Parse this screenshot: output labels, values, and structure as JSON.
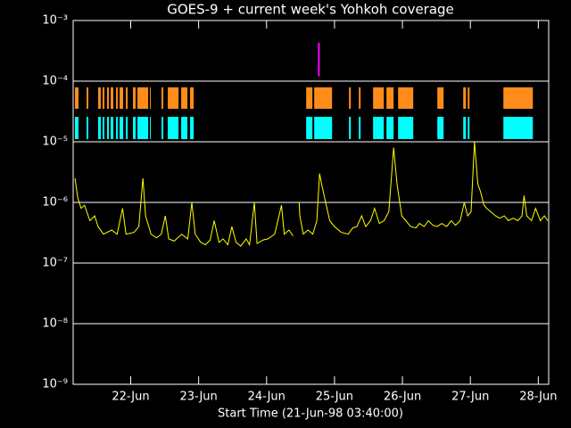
{
  "chart_data": {
    "type": "line",
    "title": "GOES-9 + current week's Yohkoh coverage",
    "x_label": "Start Time (21-Jun-98 03:40:00)",
    "log_y": true,
    "grid": true,
    "xlim": [
      21.153,
      28.153
    ],
    "xticks": [
      {
        "value": 22,
        "label": "22-Jun"
      },
      {
        "value": 23,
        "label": "23-Jun"
      },
      {
        "value": 24,
        "label": "24-Jun"
      },
      {
        "value": 25,
        "label": "25-Jun"
      },
      {
        "value": 26,
        "label": "26-Jun"
      },
      {
        "value": 27,
        "label": "27-Jun"
      },
      {
        "value": 28,
        "label": "28-Jun"
      }
    ],
    "ylim": [
      1e-09,
      0.001
    ],
    "yticks": [
      {
        "value": 1e-09,
        "label": "10⁻⁹"
      },
      {
        "value": 1e-08,
        "label": "10⁻⁸"
      },
      {
        "value": 1e-07,
        "label": "10⁻⁷"
      },
      {
        "value": 1e-06,
        "label": "10⁻⁶"
      },
      {
        "value": 1e-05,
        "label": "10⁻⁵"
      },
      {
        "value": 0.0001,
        "label": "10⁻⁴"
      },
      {
        "value": 0.001,
        "label": "10⁻³"
      }
    ],
    "series": [
      {
        "color": "#ffff00",
        "x": [
          21.18,
          21.22,
          21.27,
          21.32,
          21.4,
          21.47,
          21.52,
          21.6,
          21.72,
          21.8,
          21.88,
          21.93,
          22.05,
          22.12,
          22.18,
          22.22,
          22.3,
          22.38,
          22.45,
          22.51,
          22.56,
          22.64,
          22.75,
          22.84,
          22.9,
          22.95,
          23.03,
          23.1,
          23.17,
          23.23,
          23.3,
          23.36,
          23.43,
          23.49,
          23.55,
          23.62,
          23.7,
          23.75,
          23.82,
          23.86,
          23.95,
          24.02,
          24.12,
          24.22,
          24.26,
          24.33,
          24.39,
          24.43,
          24.48,
          24.49,
          24.54,
          24.61,
          24.68,
          24.74,
          24.78,
          24.81,
          24.87,
          24.93,
          25.0,
          25.1,
          25.2,
          25.27,
          25.33,
          25.4,
          25.46,
          25.53,
          25.59,
          25.66,
          25.73,
          25.8,
          25.87,
          25.92,
          25.99,
          26.05,
          26.12,
          26.2,
          26.25,
          26.32,
          26.38,
          26.45,
          26.51,
          26.58,
          26.65,
          26.72,
          26.78,
          26.85,
          26.91,
          26.96,
          27.01,
          27.06,
          27.11,
          27.15,
          27.2,
          27.24,
          27.3,
          27.37,
          27.43,
          27.5,
          27.56,
          27.63,
          27.7,
          27.76,
          27.79,
          27.83,
          27.9,
          27.96,
          28.03,
          28.09,
          28.14
        ],
        "values": [
          2.5e-06,
          1.2e-06,
          8e-07,
          9e-07,
          5e-07,
          6e-07,
          4e-07,
          3e-07,
          3.5e-07,
          3e-07,
          8e-07,
          3e-07,
          3.2e-07,
          4e-07,
          2.5e-06,
          6e-07,
          3e-07,
          2.6e-07,
          3e-07,
          6e-07,
          2.5e-07,
          2.3e-07,
          3e-07,
          2.5e-07,
          1e-06,
          3e-07,
          2.2e-07,
          2e-07,
          2.4e-07,
          5e-07,
          2.2e-07,
          2.5e-07,
          2e-07,
          4e-07,
          2.2e-07,
          1.9e-07,
          2.5e-07,
          2e-07,
          1e-06,
          2.1e-07,
          2.4e-07,
          2.5e-07,
          3e-07,
          9e-07,
          3e-07,
          3.5e-07,
          2.8e-07,
          null,
          1e-06,
          6e-07,
          3e-07,
          3.5e-07,
          3e-07,
          5e-07,
          3e-06,
          2e-06,
          1e-06,
          5e-07,
          4e-07,
          3.2e-07,
          3e-07,
          3.8e-07,
          4e-07,
          6e-07,
          4e-07,
          5e-07,
          8e-07,
          4.5e-07,
          5e-07,
          7e-07,
          8e-06,
          2e-06,
          6e-07,
          5e-07,
          4e-07,
          3.8e-07,
          4.5e-07,
          4e-07,
          5e-07,
          4.2e-07,
          4e-07,
          4.5e-07,
          4e-07,
          5e-07,
          4.2e-07,
          5e-07,
          1e-06,
          6e-07,
          7e-07,
          1e-05,
          2e-06,
          1.5e-06,
          9e-07,
          8e-07,
          7e-07,
          6e-07,
          5.5e-07,
          6e-07,
          5e-07,
          5.5e-07,
          5e-07,
          6e-07,
          1.3e-06,
          6e-07,
          5e-07,
          8e-07,
          5e-07,
          6e-07,
          5e-07
        ]
      }
    ],
    "coverage": {
      "colors": [
        "#ff8c1a",
        "#00ffff"
      ],
      "intervals": [
        [
          21.179,
          21.232
        ],
        [
          21.35,
          21.376
        ],
        [
          21.521,
          21.56
        ],
        [
          21.587,
          21.613
        ],
        [
          21.652,
          21.679
        ],
        [
          21.705,
          21.744
        ],
        [
          21.784,
          21.81
        ],
        [
          21.836,
          21.889
        ],
        [
          21.928,
          21.955
        ],
        [
          22.033,
          22.073
        ],
        [
          22.099,
          22.257
        ],
        [
          22.283,
          22.296
        ],
        [
          22.454,
          22.48
        ],
        [
          22.546,
          22.704
        ],
        [
          22.743,
          22.835
        ],
        [
          22.874,
          22.927
        ],
        [
          24.583,
          24.675
        ],
        [
          24.701,
          24.964
        ],
        [
          25.213,
          25.24
        ],
        [
          25.358,
          25.384
        ],
        [
          25.568,
          25.726
        ],
        [
          25.765,
          25.87
        ],
        [
          25.936,
          26.159
        ],
        [
          26.514,
          26.606
        ],
        [
          26.895,
          26.935
        ],
        [
          26.961,
          26.987
        ],
        [
          27.486,
          27.92
        ]
      ]
    },
    "marker": {
      "color": "#ff00ff",
      "x": 24.77,
      "range": [
        0.00012,
        0.00043
      ]
    }
  }
}
